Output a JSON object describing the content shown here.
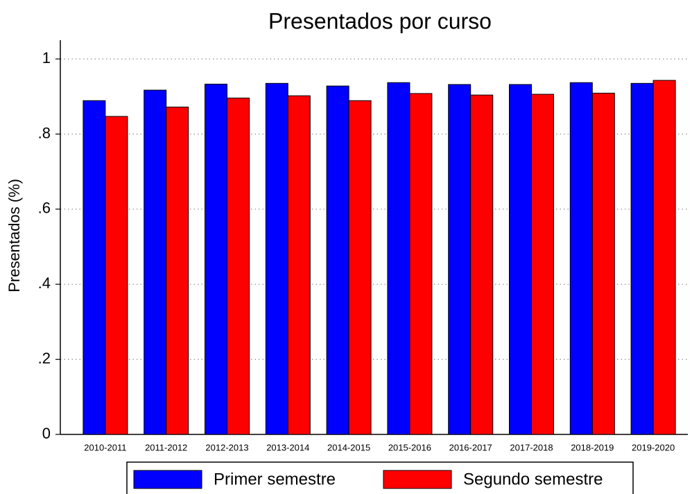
{
  "chart_data": {
    "type": "bar",
    "title": "Presentados por curso",
    "ylabel": "Presentados (%)",
    "categories": [
      "2010-2011",
      "2011-2012",
      "2012-2013",
      "2013-2014",
      "2014-2015",
      "2015-2016",
      "2016-2017",
      "2017-2018",
      "2018-2019",
      "2019-2020"
    ],
    "series": [
      {
        "name": "Primer semestre",
        "color": "#0000ff",
        "values": [
          0.889,
          0.917,
          0.933,
          0.935,
          0.928,
          0.937,
          0.932,
          0.932,
          0.937,
          0.935
        ]
      },
      {
        "name": "Segundo semestre",
        "color": "#ff0000",
        "values": [
          0.847,
          0.872,
          0.896,
          0.902,
          0.889,
          0.908,
          0.904,
          0.906,
          0.909,
          0.943
        ]
      }
    ],
    "ylim": [
      0,
      1.05
    ],
    "yticks": [
      0,
      {
        "value": 0.2,
        "label": ".2"
      },
      {
        "value": 0.4,
        "label": ".4"
      },
      {
        "value": 0.6,
        "label": ".6"
      },
      {
        "value": 0.8,
        "label": ".8"
      },
      1
    ],
    "grid": true,
    "legend": "bottom"
  }
}
